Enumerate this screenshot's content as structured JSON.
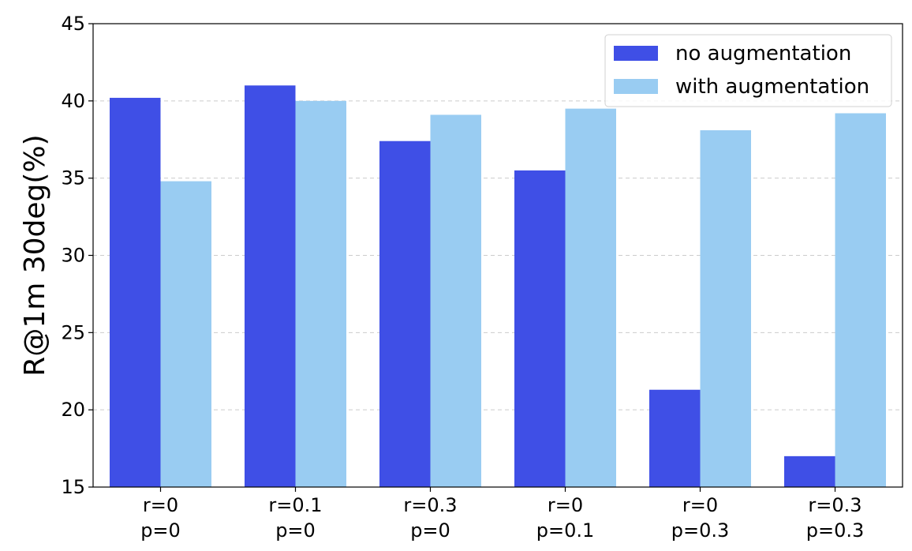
{
  "chart_data": {
    "type": "bar",
    "categories": [
      [
        "r=0",
        "p=0"
      ],
      [
        "r=0.1",
        "p=0"
      ],
      [
        "r=0.3",
        "p=0"
      ],
      [
        "r=0",
        "p=0.1"
      ],
      [
        "r=0",
        "p=0.3"
      ],
      [
        "r=0.3",
        "p=0.3"
      ]
    ],
    "series": [
      {
        "name": "no augmentation",
        "color": "#3f4fe6",
        "values": [
          40.2,
          41.0,
          37.4,
          35.5,
          21.3,
          17.0
        ]
      },
      {
        "name": "with augmentation",
        "color": "#99ccf2",
        "values": [
          34.8,
          40.0,
          39.1,
          39.5,
          38.1,
          39.2
        ]
      }
    ],
    "title": "",
    "xlabel": "",
    "ylabel": "R@1m 30deg(%)",
    "ylim": [
      15,
      45
    ],
    "yticks": [
      15,
      20,
      25,
      30,
      35,
      40,
      45
    ],
    "grid": "y-dashed",
    "legend_position": "top-right"
  }
}
